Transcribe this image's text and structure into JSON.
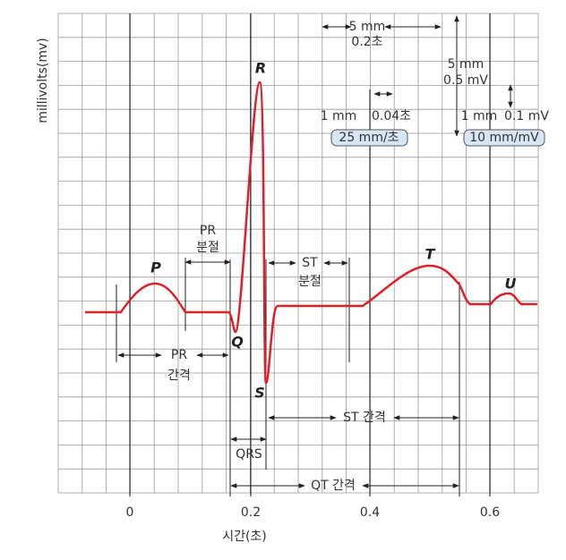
{
  "scale": {
    "time_mm": "5 mm",
    "time_sec": "0.2초",
    "volt_mm": "5 mm",
    "volt_mv": "0.5 mV",
    "small_time_mm": "1 mm",
    "small_time_sec": "0.04초",
    "speed": "25 mm/초",
    "small_volt_mm": "1 mm",
    "small_volt_mv": "0.1 mV",
    "gain": "10 mm/mV"
  },
  "waves": {
    "P": "P",
    "Q": "Q",
    "R": "R",
    "S": "S",
    "T": "T",
    "U": "U"
  },
  "intervals": {
    "pr_segment": [
      "PR",
      "분절"
    ],
    "st_segment": [
      "ST",
      "분절"
    ],
    "pr_interval": [
      "PR",
      "간격"
    ],
    "st_interval": "ST 간격",
    "qrs": "QRS",
    "qt_interval": "QT 간격"
  },
  "axis": {
    "x_label": "시간(초)",
    "y_label": "millivolts(mv)",
    "x_ticks": [
      "0",
      "0.2",
      "0.4",
      "0.6"
    ]
  }
}
